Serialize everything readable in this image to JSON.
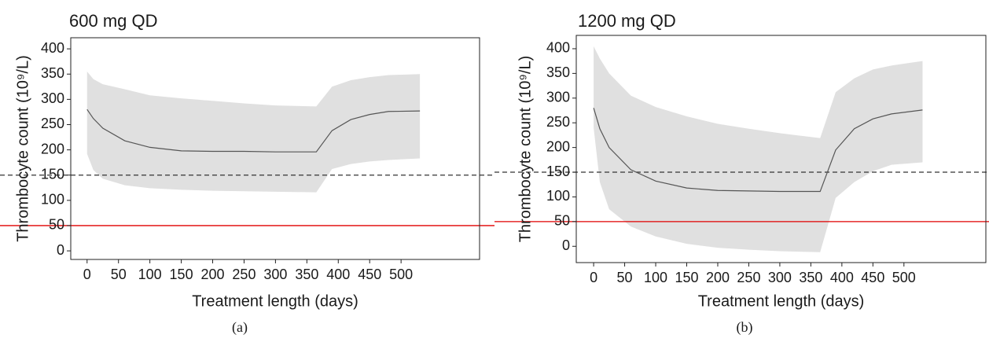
{
  "chart_data": [
    {
      "type": "line",
      "title": "600 mg QD",
      "xlabel": "Treatment length (days)",
      "ylabel": "Thrombocyte count (10⁹/L)",
      "caption": "(a)",
      "x": [
        0,
        10,
        25,
        60,
        100,
        150,
        200,
        250,
        300,
        365,
        390,
        420,
        450,
        480,
        530
      ],
      "series": [
        {
          "color": "#555555",
          "values": [
            280,
            262,
            243,
            218,
            205,
            198,
            197,
            197,
            196,
            196,
            238,
            260,
            270,
            276,
            277
          ]
        }
      ],
      "band": {
        "color": "#e0e0e0",
        "lower": [
          192,
          160,
          143,
          130,
          124,
          121,
          119,
          118,
          117,
          116,
          162,
          172,
          177,
          180,
          183
        ],
        "upper": [
          355,
          340,
          330,
          320,
          308,
          302,
          297,
          292,
          288,
          286,
          325,
          338,
          344,
          348,
          350
        ]
      },
      "hlines": [
        {
          "value": 150,
          "color": "#333333",
          "dashed": true
        },
        {
          "value": 50,
          "color": "#e00000",
          "dashed": false
        }
      ],
      "xlim": [
        -26,
        625
      ],
      "ylim": [
        -17,
        422
      ],
      "xticks": [
        0,
        50,
        100,
        150,
        200,
        250,
        300,
        350,
        400,
        450,
        500
      ],
      "yticks": [
        0,
        50,
        100,
        150,
        200,
        250,
        300,
        350,
        400
      ]
    },
    {
      "type": "line",
      "title": "1200 mg QD",
      "xlabel": "Treatment length (days)",
      "ylabel": "Thrombocyte count (10⁹/L)",
      "caption": "(b)",
      "x": [
        0,
        10,
        25,
        60,
        100,
        150,
        200,
        250,
        300,
        365,
        390,
        420,
        450,
        480,
        530
      ],
      "series": [
        {
          "color": "#555555",
          "values": [
            280,
            238,
            200,
            155,
            132,
            118,
            113,
            112,
            111,
            111,
            195,
            238,
            258,
            268,
            276
          ]
        }
      ],
      "band": {
        "color": "#e0e0e0",
        "lower": [
          240,
          130,
          75,
          40,
          20,
          5,
          -3,
          -7,
          -10,
          -12,
          98,
          130,
          152,
          165,
          170
        ],
        "upper": [
          405,
          380,
          350,
          305,
          282,
          263,
          248,
          238,
          229,
          219,
          312,
          340,
          358,
          366,
          375
        ]
      },
      "hlines": [
        {
          "value": 150,
          "color": "#333333",
          "dashed": true
        },
        {
          "value": 50,
          "color": "#e00000",
          "dashed": false
        }
      ],
      "xlim": [
        -28,
        632
      ],
      "ylim": [
        -33,
        427
      ],
      "xticks": [
        0,
        50,
        100,
        150,
        200,
        250,
        300,
        350,
        400,
        450,
        500
      ],
      "yticks": [
        0,
        50,
        100,
        150,
        200,
        250,
        300,
        350,
        400
      ]
    }
  ]
}
